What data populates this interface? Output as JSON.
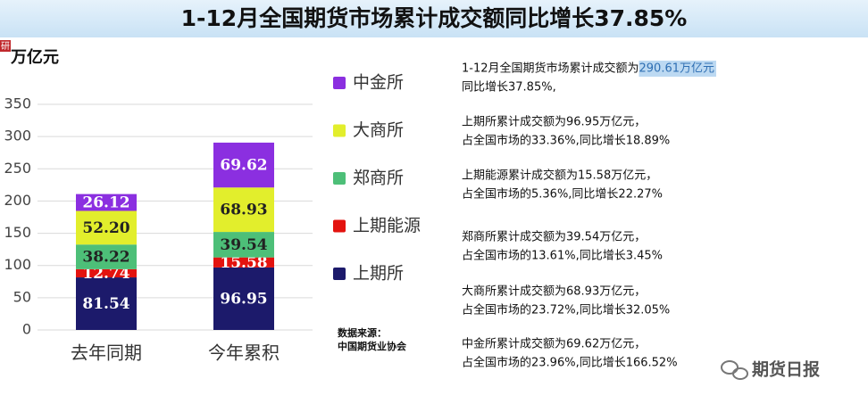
{
  "chart_data": {
    "type": "stacked_bar",
    "title": "1-12月全国期货市场累计成交额同比增长37.85%",
    "y_label": "万亿元",
    "categories": [
      "去年同期",
      "今年累积"
    ],
    "series": [
      {
        "name": "上期所",
        "color": "#1c1a6b",
        "values": [
          81.54,
          96.95
        ],
        "value_labels": [
          "81.54",
          "96.95"
        ]
      },
      {
        "name": "上期能源",
        "color": "#e3130f",
        "values": [
          12.74,
          15.58
        ],
        "value_labels": [
          "12.74",
          "15.58"
        ]
      },
      {
        "name": "郑商所",
        "color": "#4dbf78",
        "values": [
          38.22,
          39.54
        ],
        "value_labels": [
          "38.22",
          "39.54"
        ]
      },
      {
        "name": "大商所",
        "color": "#e2ee2c",
        "values": [
          52.2,
          68.93
        ],
        "value_labels": [
          "52.20",
          "68.93"
        ]
      },
      {
        "name": "中金所",
        "color": "#8b2fe0",
        "values": [
          26.12,
          69.62
        ],
        "value_labels": [
          "26.12",
          "69.62"
        ]
      }
    ],
    "ylim": [
      0,
      350
    ],
    "yticks": [
      0,
      50,
      100,
      150,
      200,
      250,
      300,
      350
    ],
    "grid": true
  },
  "badge": "研",
  "notes": [
    {
      "lines": [
        "1-12月全国期货市场累计成交额为",
        "同比增长37.85%,"
      ],
      "highlight": "290.61万亿元"
    },
    {
      "lines": [
        "上期所累计成交额为96.95万亿元，",
        "占全国市场的33.36%,同比增长18.89%"
      ]
    },
    {
      "lines": [
        "上期能源累计成交额为15.58万亿元，",
        "占全国市场的5.36%,同比增长22.27%"
      ]
    },
    {
      "lines": [
        "郑商所累计成交额为39.54万亿元，",
        "占全国市场的13.61%,同比增长3.45%"
      ]
    },
    {
      "lines": [
        "大商所累计成交额为68.93万亿元，",
        "占全国市场的23.72%,同比增长32.05%"
      ]
    },
    {
      "lines": [
        "中金所累计成交额为69.62万亿元，",
        "占全国市场的23.96%,同比增长166.52%"
      ]
    }
  ],
  "source": {
    "label": "数据来源：",
    "org": "中国期货业协会"
  },
  "watermark": "期货日报"
}
